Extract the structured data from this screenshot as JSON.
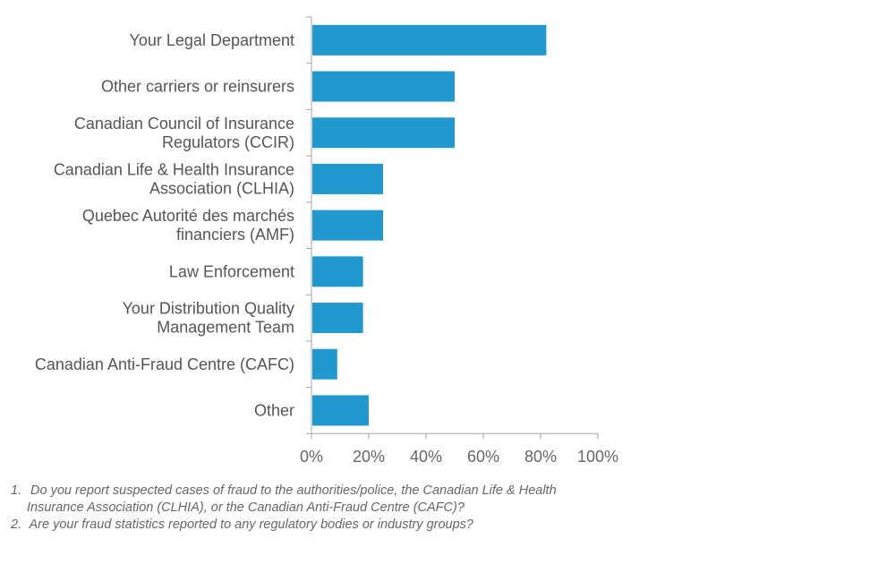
{
  "chart_data": {
    "type": "bar",
    "orientation": "horizontal",
    "categories": [
      [
        "Your Legal Department"
      ],
      [
        "Other carriers or reinsurers"
      ],
      [
        "Canadian Council of Insurance",
        "Regulators (CCIR)"
      ],
      [
        "Canadian Life & Health Insurance",
        "Association (CLHIA)"
      ],
      [
        "Quebec Autorité des marchés",
        "financiers (AMF)"
      ],
      [
        "Law Enforcement"
      ],
      [
        "Your Distribution Quality",
        "Management Team"
      ],
      [
        "Canadian Anti-Fraud Centre (CAFC)"
      ],
      [
        "Other"
      ]
    ],
    "values": [
      82,
      50,
      50,
      25,
      25,
      18,
      18,
      9,
      20
    ],
    "xlim": [
      0,
      100
    ],
    "xticks": [
      "0%",
      "20%",
      "40%",
      "60%",
      "80%",
      "100%"
    ],
    "xtick_values": [
      0,
      20,
      40,
      60,
      80,
      100
    ],
    "bar_color": "#2199CE",
    "axis_color": "#A6A6A6",
    "grid": false,
    "legend": "none"
  },
  "footnotes": [
    {
      "number": "1.",
      "lines": [
        "Do you report suspected cases of fraud to the authorities/police, the Canadian Life & Health",
        "Insurance Association (CLHIA), or the Canadian Anti-Fraud Centre (CAFC)?"
      ]
    },
    {
      "number": "2.",
      "lines": [
        "Are your fraud statistics reported to any regulatory bodies or industry groups?"
      ]
    }
  ]
}
